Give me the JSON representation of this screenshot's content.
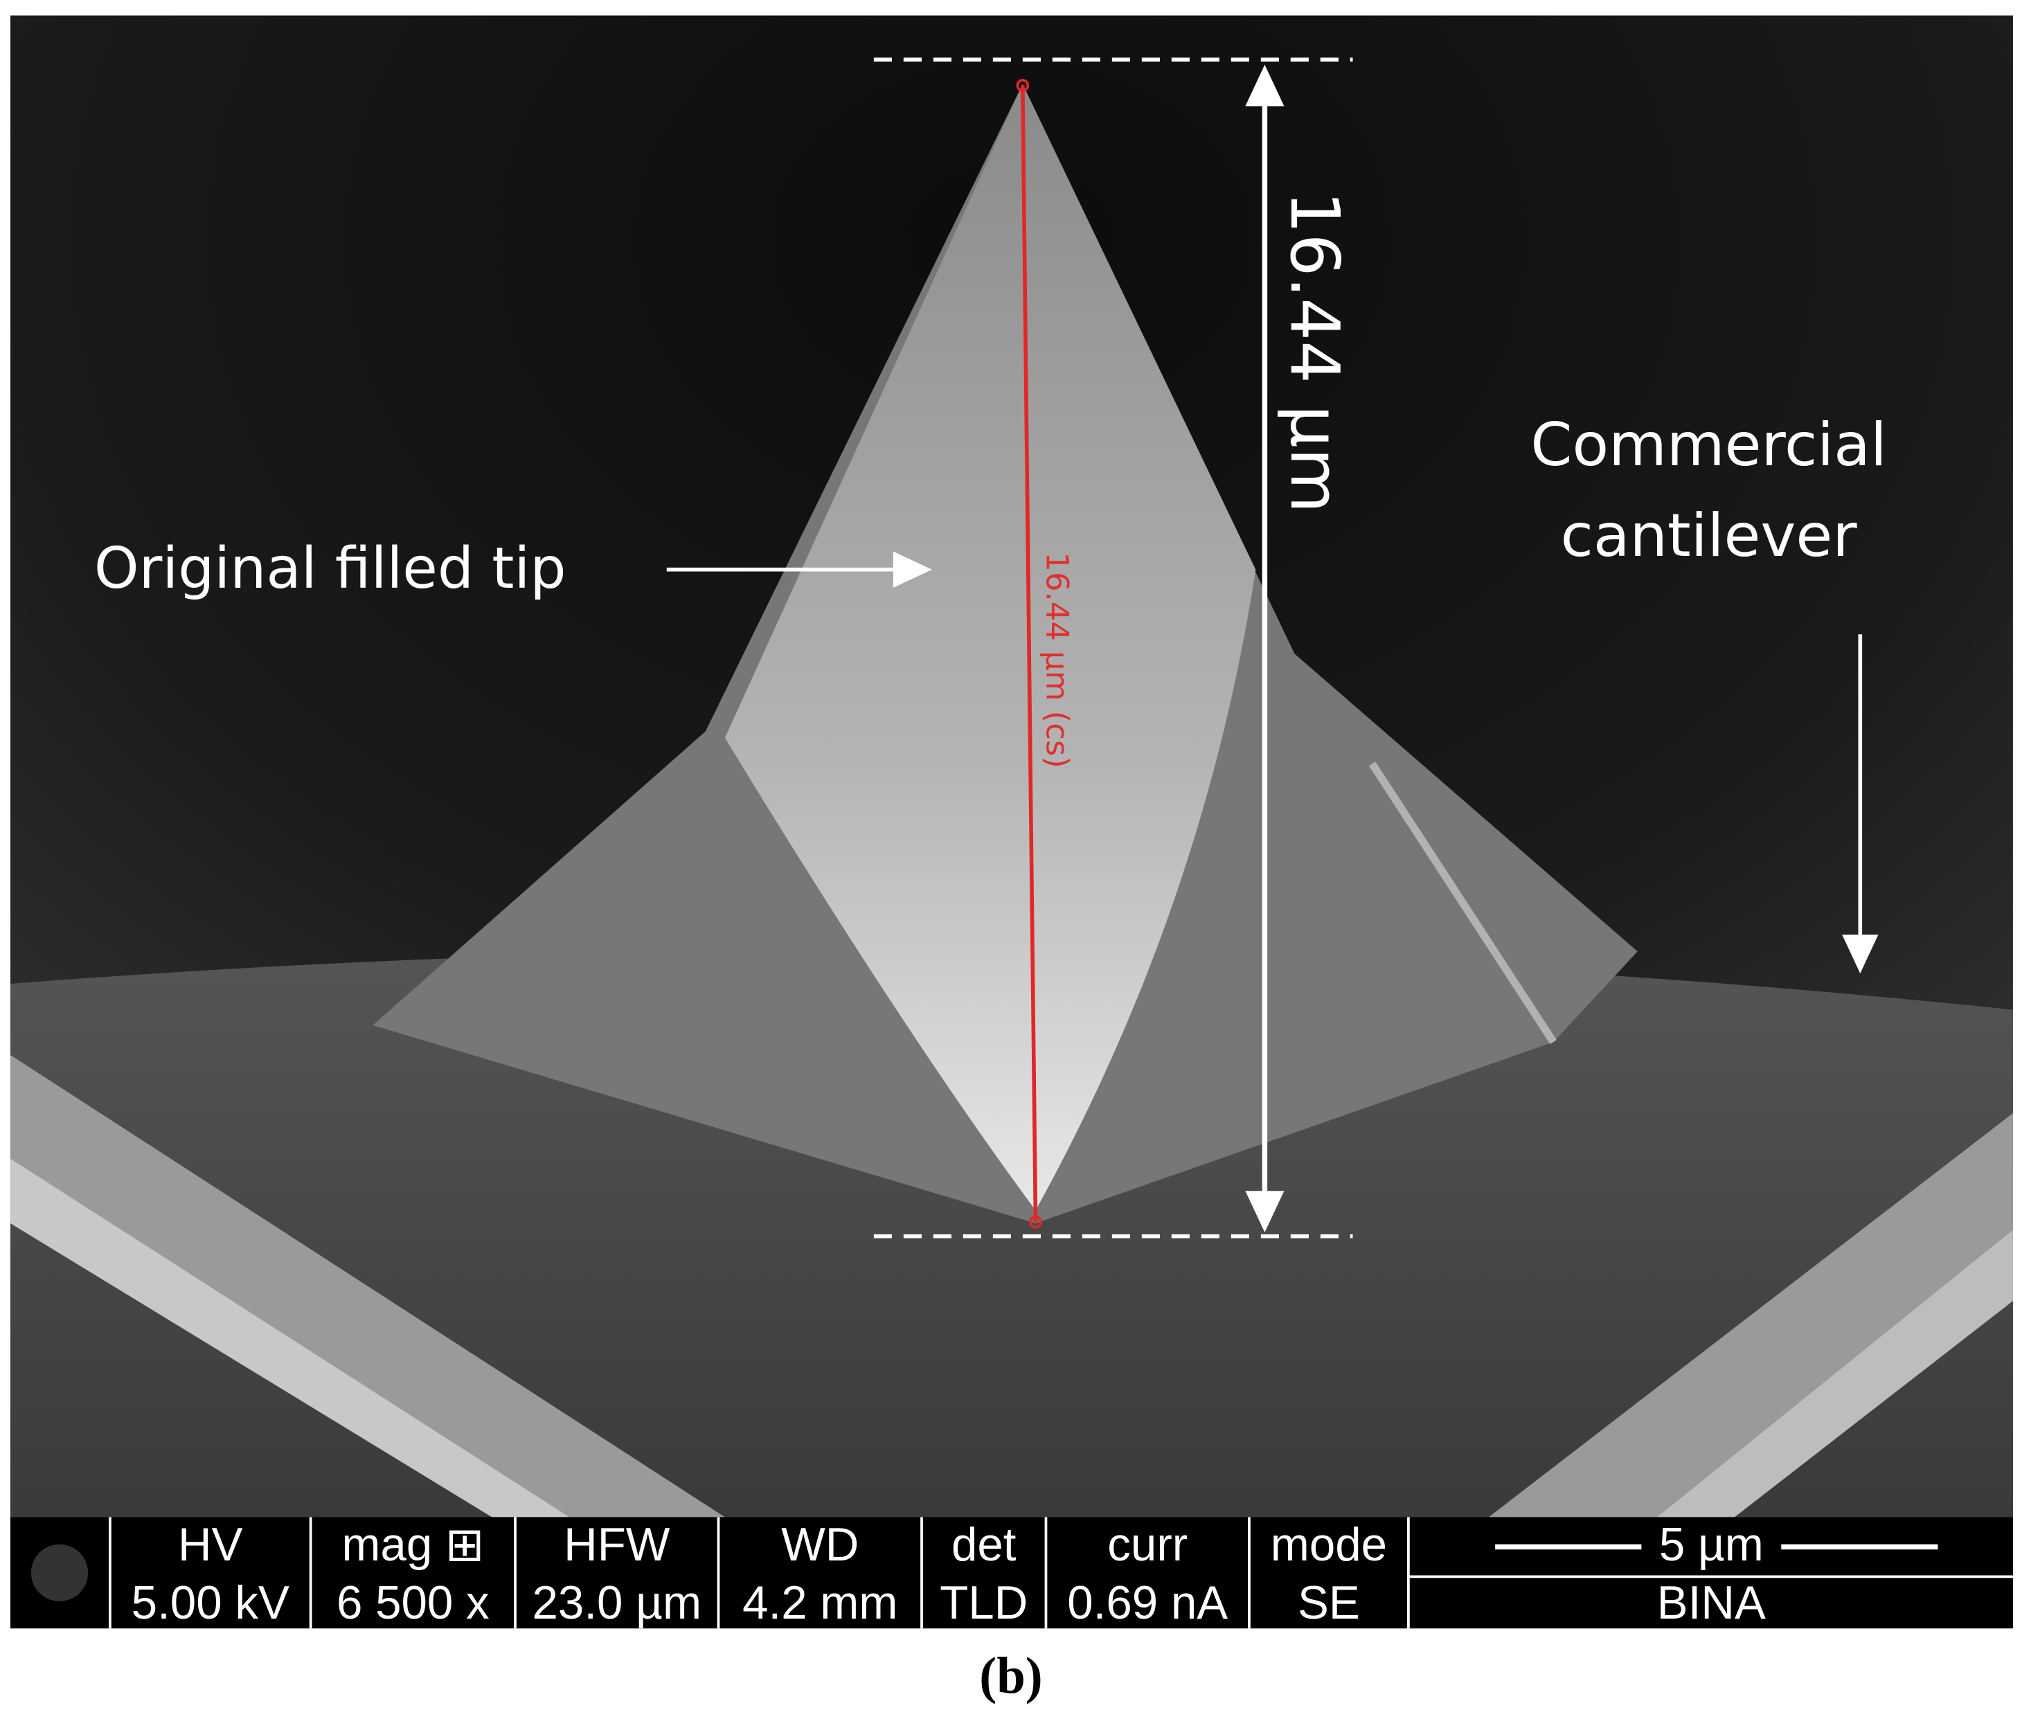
{
  "image": {
    "annotations": {
      "tip_label": "Original filled tip",
      "cantilever_label": [
        "Commercial",
        "cantilever"
      ],
      "height_label": "16.44 µm",
      "measurement_label": "16.44 µm (cs)"
    },
    "info_bar": {
      "columns": [
        {
          "header": "HV",
          "value": "5.00 kV"
        },
        {
          "header": "mag ⊞",
          "value": "6 500 x"
        },
        {
          "header": "HFW",
          "value": "23.0 µm"
        },
        {
          "header": "WD",
          "value": "4.2 mm"
        },
        {
          "header": "det",
          "value": "TLD"
        },
        {
          "header": "curr",
          "value": "0.69 nA"
        },
        {
          "header": "mode",
          "value": "SE"
        }
      ],
      "scale_bar": "5 µm",
      "operator": "BINA"
    }
  },
  "caption": "(b)"
}
